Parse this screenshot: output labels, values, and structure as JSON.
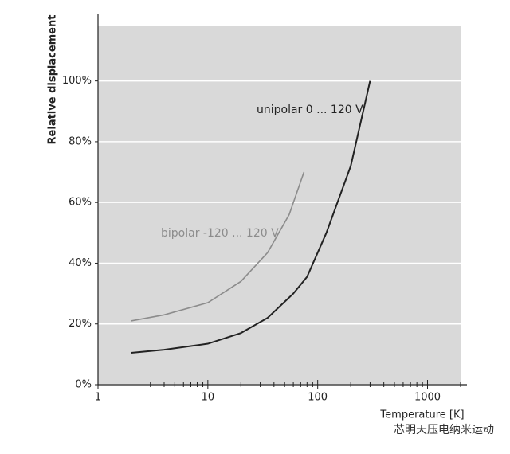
{
  "chart_data": {
    "type": "line",
    "y_label": "Relative displacement",
    "x_label": "Temperature [K]",
    "watermark": "芯明天压电纳米运动",
    "xlog": true,
    "grid": true,
    "background": "#d9d9d9",
    "xlim": [
      1,
      2000
    ],
    "xticks": [
      1,
      10,
      100,
      1000
    ],
    "ylim": [
      0,
      118
    ],
    "yticks": [
      {
        "value": 0,
        "label": "0%"
      },
      {
        "value": 20,
        "label": "20%"
      },
      {
        "value": 40,
        "label": "40%"
      },
      {
        "value": 60,
        "label": "60%"
      },
      {
        "value": 80,
        "label": "80%"
      },
      {
        "value": 100,
        "label": "100%"
      }
    ],
    "series": [
      {
        "name": "unipolar 0 ... 120 V",
        "color": "#222222",
        "x": [
          2,
          4,
          10,
          20,
          35,
          60,
          80,
          120,
          200,
          300
        ],
        "values": [
          10.5,
          11.5,
          13.5,
          17,
          22,
          30,
          35.5,
          50,
          72,
          100
        ]
      },
      {
        "name": "bipolar -120 ... 120 V",
        "color": "#8c8c8c",
        "x": [
          2,
          4,
          10,
          20,
          35,
          55,
          75
        ],
        "values": [
          21,
          23,
          27,
          34,
          43.5,
          56,
          70
        ]
      }
    ]
  }
}
